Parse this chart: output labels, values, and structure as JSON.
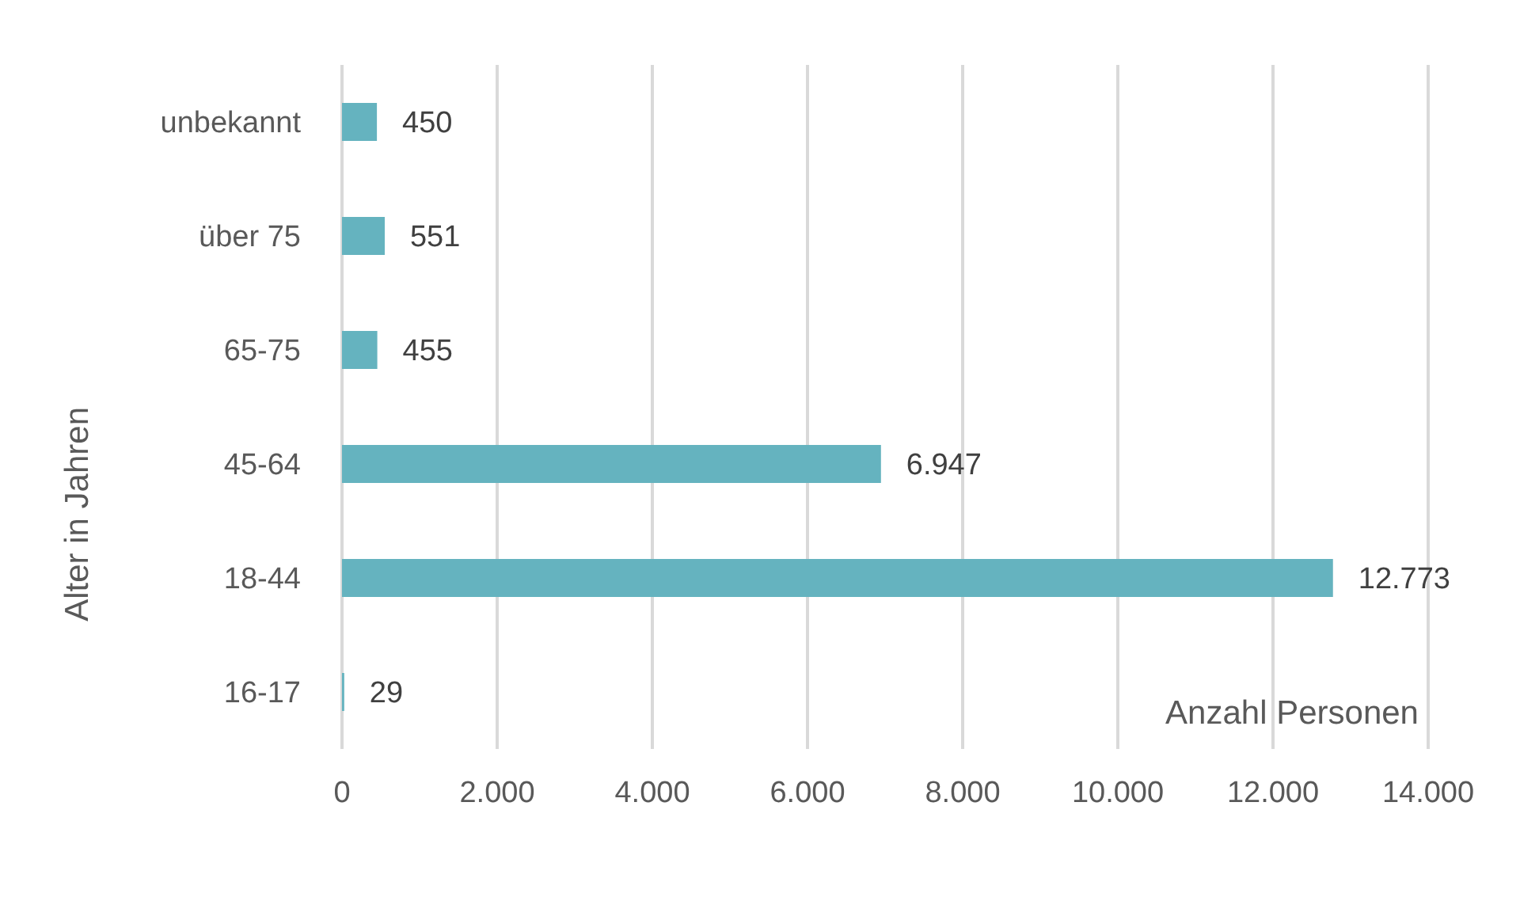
{
  "chart_data": {
    "type": "bar",
    "orientation": "horizontal",
    "ylabel": "Alter in Jahren",
    "xlabel": "Anzahl Personen",
    "categories": [
      "unbekannt",
      "über 75",
      "65-75",
      "45-64",
      "18-44",
      "16-17"
    ],
    "values": [
      450,
      551,
      455,
      6947,
      12773,
      29
    ],
    "value_labels": [
      "450",
      "551",
      "455",
      "6.947",
      "12.773",
      "29"
    ],
    "color": "#65b3bf",
    "xlim": [
      0,
      14000
    ],
    "xticks": [
      0,
      {
        "value": 2000,
        "label": "2.000"
      },
      {
        "value": 4000,
        "label": "4.000"
      },
      {
        "value": 6000,
        "label": "6.000"
      },
      {
        "value": 8000,
        "label": "8.000"
      },
      {
        "value": 10000,
        "label": "10.000"
      },
      {
        "value": 12000,
        "label": "12.000"
      },
      {
        "value": 14000,
        "label": "14.000"
      }
    ],
    "grid": "x",
    "legend": false
  }
}
